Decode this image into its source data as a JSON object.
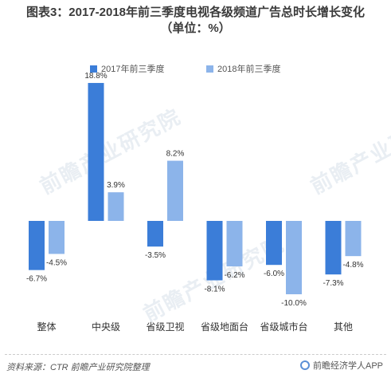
{
  "title": {
    "line1": "图表3：2017-2018年前三季度电视各级频道广告总时长增长变化",
    "line2": "（单位：%）"
  },
  "legend": [
    {
      "label": "2017年前三季度",
      "color": "#3b7dd8"
    },
    {
      "label": "2018年前三季度",
      "color": "#8cb4ea"
    }
  ],
  "chart_data": {
    "type": "bar",
    "categories": [
      "整体",
      "中央级",
      "省级卫视",
      "省级地面台",
      "省级城市台",
      "其他"
    ],
    "series": [
      {
        "name": "2017年前三季度",
        "values": [
          -6.7,
          18.8,
          -3.5,
          -8.1,
          -6.0,
          -7.3
        ]
      },
      {
        "name": "2018年前三季度",
        "values": [
          -4.5,
          3.9,
          8.2,
          -6.2,
          -10.0,
          -4.8
        ]
      }
    ],
    "data_labels": [
      [
        "-6.7%",
        "18.8%",
        "-3.5%",
        "-8.1%",
        "-6.0%",
        "-7.3%"
      ],
      [
        "-4.5%",
        "3.9%",
        "8.2%",
        "-6.2%",
        "-10.0%",
        "-4.8%"
      ]
    ],
    "ylim": [
      -10,
      18.8
    ],
    "grid": false,
    "legend_position": "top"
  },
  "footer": {
    "source": "资料来源：CTR  前瞻产业研究院整理",
    "brand": "前瞻经济学人APP"
  },
  "watermark": {
    "text": "前瞻产业研究院"
  }
}
